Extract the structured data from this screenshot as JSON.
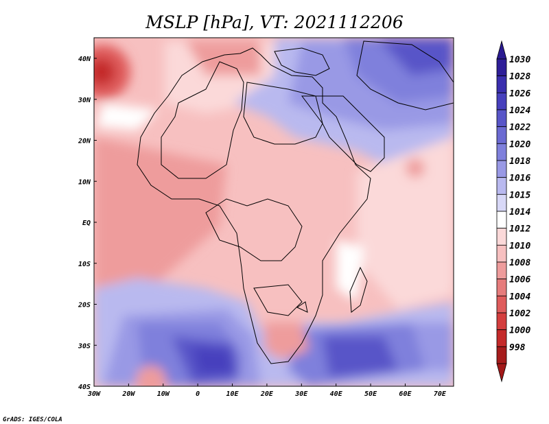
{
  "title": "MSLP [hPa], VT: 2021112206",
  "credit": "GrADS: IGES/COLA",
  "x_ticks": [
    "30W",
    "20W",
    "10W",
    "0",
    "10E",
    "20E",
    "30E",
    "40E",
    "50E",
    "60E",
    "70E"
  ],
  "y_ticks": [
    "40N",
    "30N",
    "20N",
    "10N",
    "EQ",
    "10S",
    "20S",
    "30S",
    "40S"
  ],
  "colorbar": {
    "levels": [
      "1030",
      "1028",
      "1026",
      "1024",
      "1022",
      "1020",
      "1018",
      "1016",
      "1015",
      "1014",
      "1012",
      "1010",
      "1008",
      "1006",
      "1004",
      "1002",
      "1000",
      "998"
    ],
    "colors": [
      "#2e1e98",
      "#3a2eae",
      "#4740bd",
      "#5855c8",
      "#6b6ad2",
      "#7f80dc",
      "#9999e5",
      "#b9b9ef",
      "#d8d8f7",
      "#ffffff",
      "#fbd9d9",
      "#f7c0c0",
      "#ee9c9c",
      "#e67c7c",
      "#df5c5c",
      "#d43e3e",
      "#c42a2a",
      "#a61c1c"
    ],
    "top_arrow": "#2a1a90",
    "bottom_arrow": "#a21818"
  },
  "colors": {
    "land_border": "#000000",
    "frame": "#000000"
  }
}
